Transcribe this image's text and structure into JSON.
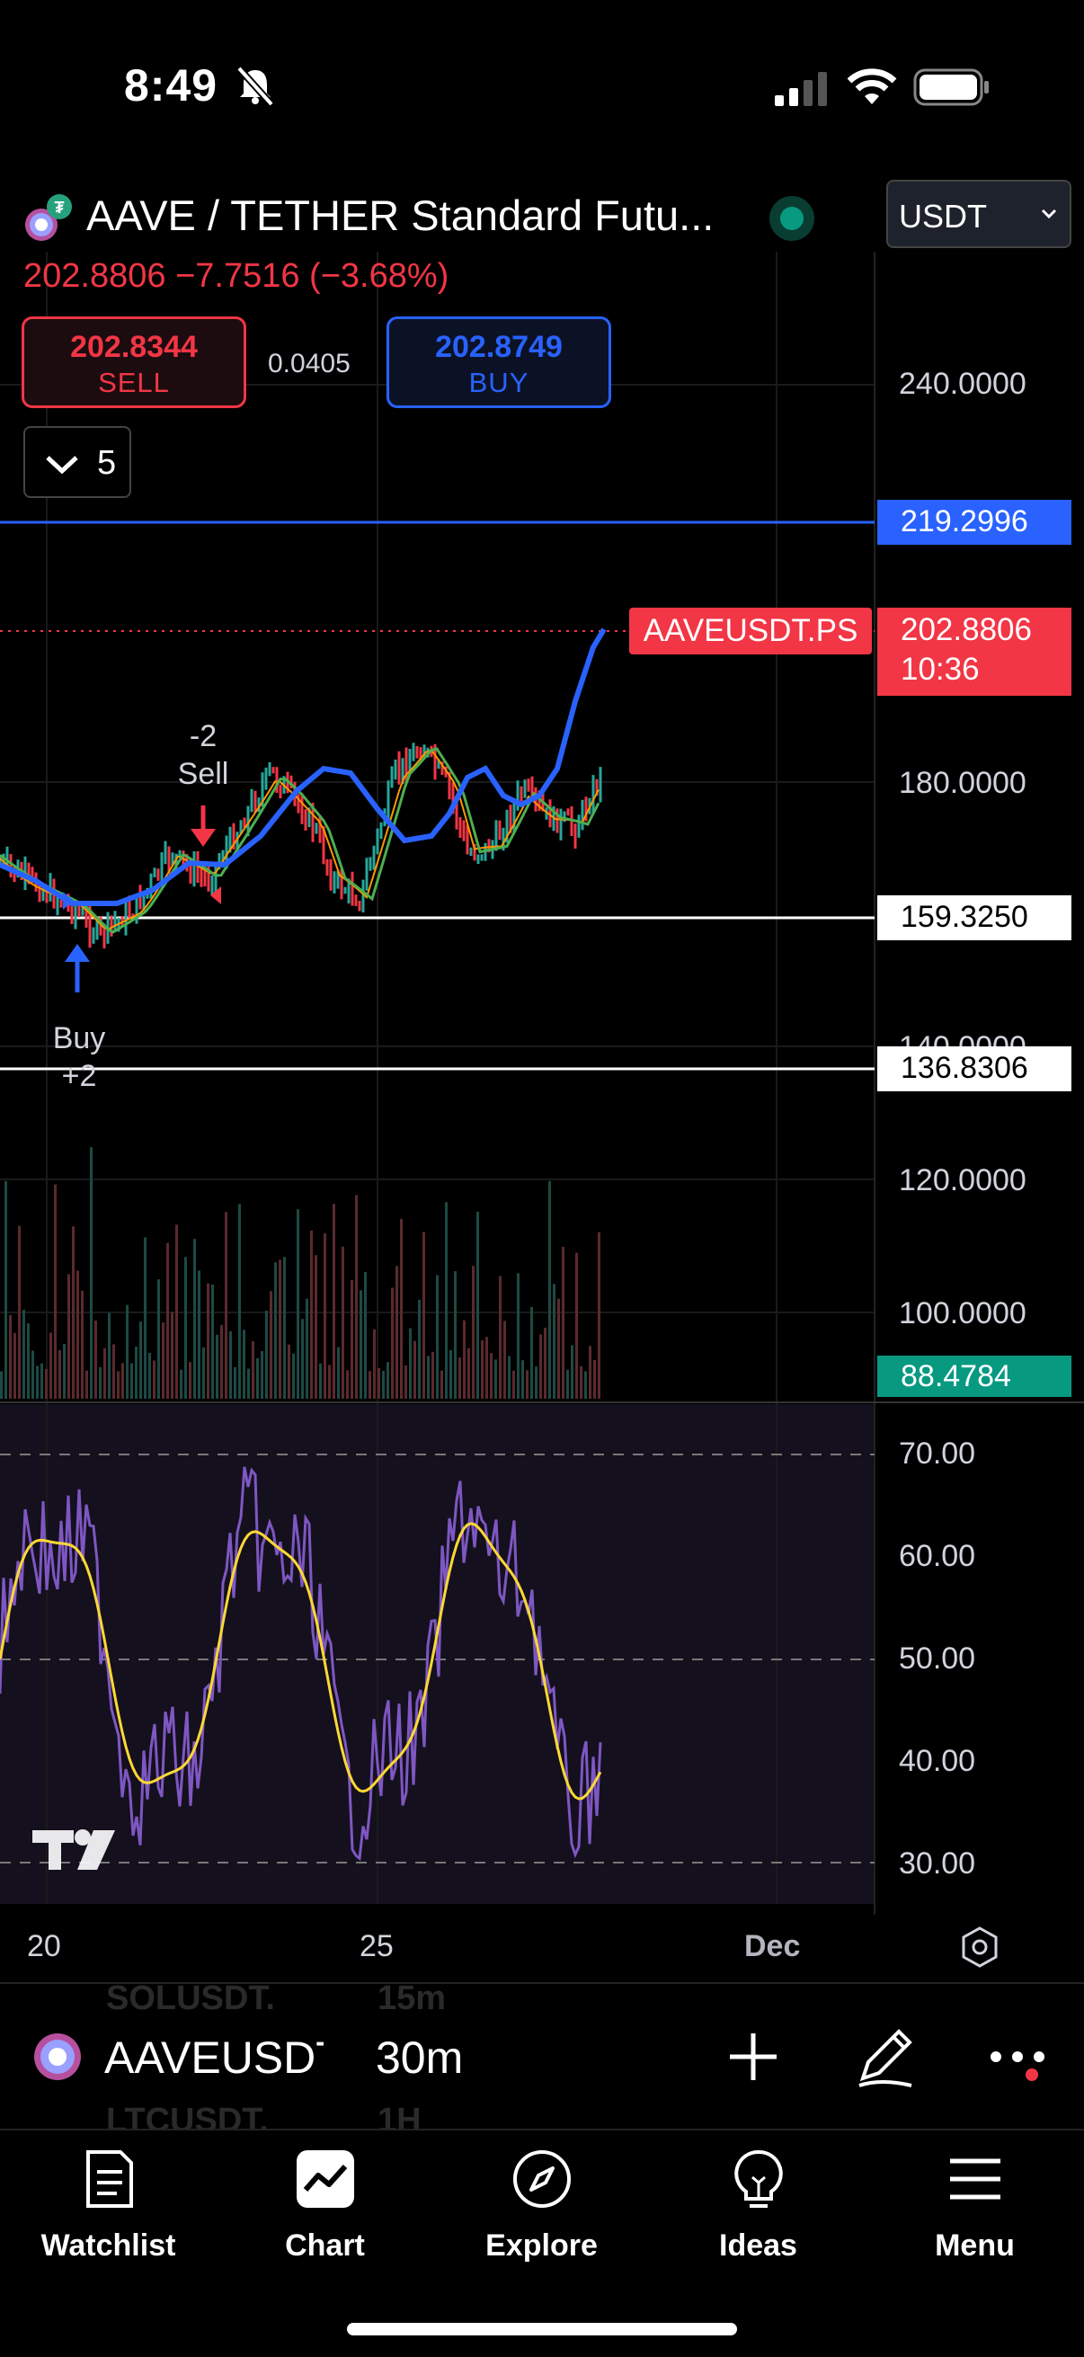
{
  "status_bar": {
    "time": "8:49"
  },
  "header": {
    "title": "AAVE / TETHER Standard Futu...",
    "price": "202.8806",
    "change": "−7.7516",
    "change_pct": "(−3.68%)",
    "currency_select": "USDT",
    "sell": {
      "value": "202.8344",
      "label": "SELL"
    },
    "spread": "0.0405",
    "buy": {
      "value": "202.8749",
      "label": "BUY"
    },
    "indicator_toggle_count": "5"
  },
  "price_axis": {
    "ticks": [
      "240.0000",
      "180.0000",
      "140.0000",
      "120.0000",
      "100.0000"
    ],
    "lines": [
      {
        "label": "219.2996",
        "color": "#2962ff"
      },
      {
        "label": "159.3250",
        "color": "#ffffff"
      },
      {
        "label": "136.8306",
        "color": "#ffffff"
      }
    ],
    "last_price": {
      "symbol": "AAVEUSDT.PS",
      "value": "202.8806",
      "countdown": "10:36",
      "color": "#f23645"
    },
    "volume": "88.4784"
  },
  "annotations": {
    "sell": {
      "qty": "-2",
      "label": "Sell"
    },
    "buy": {
      "label": "Buy",
      "qty": "+2"
    }
  },
  "oscillator_axis": {
    "ticks": [
      "70.00",
      "60.00",
      "50.00",
      "40.00",
      "30.00"
    ]
  },
  "time_axis": {
    "ticks": [
      "20",
      "25",
      "Dec"
    ]
  },
  "symbol_bar": {
    "symbol": "AAVEUSDT",
    "interval": "30m",
    "ghost_symbols": [
      {
        "symbol": "SOLUSDT.",
        "interval": "15m"
      },
      {
        "symbol": "LTCUSDT.",
        "interval": "1H"
      }
    ]
  },
  "tab_bar": {
    "items": [
      {
        "label": "Watchlist",
        "icon": "watchlist-icon"
      },
      {
        "label": "Chart",
        "icon": "chart-icon",
        "active": true
      },
      {
        "label": "Explore",
        "icon": "compass-icon"
      },
      {
        "label": "Ideas",
        "icon": "lightbulb-icon"
      },
      {
        "label": "Menu",
        "icon": "hamburger-icon"
      }
    ]
  },
  "colors": {
    "up": "#26a69a",
    "down": "#f23645",
    "accent": "#2962ff",
    "rsi": "#7e57c2",
    "rsi_ma": "#fdd835"
  }
}
